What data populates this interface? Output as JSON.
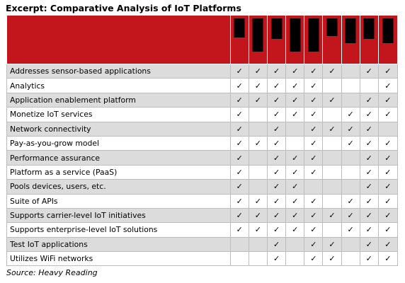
{
  "title": "Excerpt: Comparative Analysis of IoT Platforms",
  "source": "Source: Heavy Reading",
  "header_bar_color": "#000000",
  "header_bg_color": "#c2161c",
  "column_count": 9,
  "rows": [
    {
      "label": "Addresses sensor-based applications",
      "checks": [
        "✓",
        "✓",
        "✓",
        "✓",
        "✓",
        "✓",
        "",
        "✓",
        "✓"
      ]
    },
    {
      "label": "Analytics",
      "checks": [
        "✓",
        "✓",
        "✓",
        "✓",
        "✓",
        "",
        "",
        "",
        "✓"
      ]
    },
    {
      "label": "Application enablement platform",
      "checks": [
        "✓",
        "✓",
        "✓",
        "✓",
        "✓",
        "✓",
        "",
        "✓",
        "✓"
      ]
    },
    {
      "label": "Monetize IoT services",
      "checks": [
        "✓",
        "",
        "✓",
        "✓",
        "✓",
        "",
        "✓",
        "✓",
        "✓"
      ]
    },
    {
      "label": "Network connectivity",
      "checks": [
        "✓",
        "",
        "✓",
        "",
        "✓",
        "✓",
        "✓",
        "✓",
        ""
      ]
    },
    {
      "label": "Pay-as-you-grow model",
      "checks": [
        "✓",
        "✓",
        "✓",
        "",
        "✓",
        "",
        "✓",
        "✓",
        "✓"
      ]
    },
    {
      "label": "Performance assurance",
      "checks": [
        "✓",
        "",
        "✓",
        "✓",
        "✓",
        "",
        "",
        "✓",
        "✓"
      ]
    },
    {
      "label": "Platform as a service (PaaS)",
      "checks": [
        "✓",
        "",
        "✓",
        "✓",
        "✓",
        "",
        "",
        "✓",
        "✓"
      ]
    },
    {
      "label": "Pools devices, users, etc.",
      "checks": [
        "✓",
        "",
        "✓",
        "✓",
        "",
        "",
        "",
        "✓",
        "✓"
      ]
    },
    {
      "label": "Suite of APIs",
      "checks": [
        "✓",
        "✓",
        "✓",
        "✓",
        "✓",
        "",
        "✓",
        "✓",
        "✓"
      ]
    },
    {
      "label": "Supports carrier-level IoT initiatives",
      "checks": [
        "✓",
        "✓",
        "✓",
        "✓",
        "✓",
        "✓",
        "✓",
        "✓",
        "✓"
      ]
    },
    {
      "label": "Supports enterprise-level IoT solutions",
      "checks": [
        "✓",
        "✓",
        "✓",
        "✓",
        "✓",
        "",
        "✓",
        "✓",
        "✓"
      ]
    },
    {
      "label": "Test IoT applications",
      "checks": [
        "",
        "",
        "✓",
        "",
        "✓",
        "✓",
        "",
        "✓",
        "✓"
      ]
    },
    {
      "label": "Utilizes WiFi networks",
      "checks": [
        "",
        "",
        "✓",
        "",
        "✓",
        "✓",
        "",
        "✓",
        "✓"
      ]
    }
  ]
}
